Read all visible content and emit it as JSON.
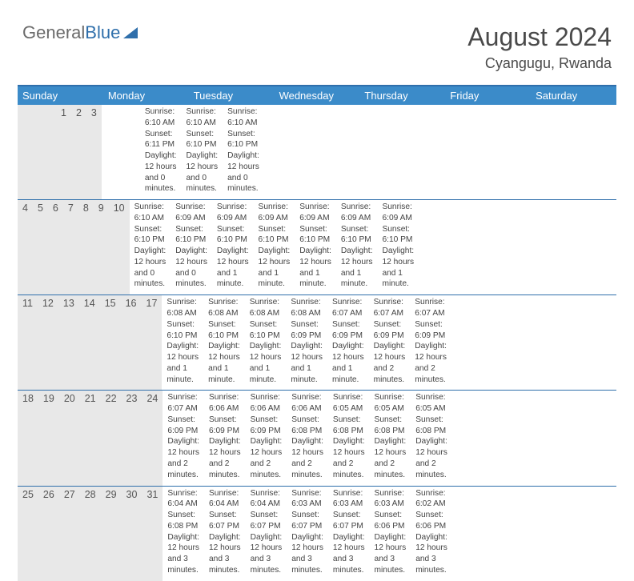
{
  "logo": {
    "part1": "General",
    "part2": "Blue"
  },
  "header": {
    "month": "August 2024",
    "location": "Cyangugu, Rwanda"
  },
  "colors": {
    "header_bg": "#3b8bc9",
    "border": "#2f6fab",
    "daynum_bg": "#e8e8e8",
    "text": "#333333"
  },
  "day_names": [
    "Sunday",
    "Monday",
    "Tuesday",
    "Wednesday",
    "Thursday",
    "Friday",
    "Saturday"
  ],
  "weeks": [
    {
      "nums": [
        "",
        "",
        "",
        "",
        "1",
        "2",
        "3"
      ],
      "cells": [
        {
          "sunrise": "",
          "sunset": "",
          "daylight_a": "",
          "daylight_b": ""
        },
        {
          "sunrise": "",
          "sunset": "",
          "daylight_a": "",
          "daylight_b": ""
        },
        {
          "sunrise": "",
          "sunset": "",
          "daylight_a": "",
          "daylight_b": ""
        },
        {
          "sunrise": "",
          "sunset": "",
          "daylight_a": "",
          "daylight_b": ""
        },
        {
          "sunrise": "Sunrise: 6:10 AM",
          "sunset": "Sunset: 6:11 PM",
          "daylight_a": "Daylight: 12 hours",
          "daylight_b": "and 0 minutes."
        },
        {
          "sunrise": "Sunrise: 6:10 AM",
          "sunset": "Sunset: 6:10 PM",
          "daylight_a": "Daylight: 12 hours",
          "daylight_b": "and 0 minutes."
        },
        {
          "sunrise": "Sunrise: 6:10 AM",
          "sunset": "Sunset: 6:10 PM",
          "daylight_a": "Daylight: 12 hours",
          "daylight_b": "and 0 minutes."
        }
      ]
    },
    {
      "nums": [
        "4",
        "5",
        "6",
        "7",
        "8",
        "9",
        "10"
      ],
      "cells": [
        {
          "sunrise": "Sunrise: 6:10 AM",
          "sunset": "Sunset: 6:10 PM",
          "daylight_a": "Daylight: 12 hours",
          "daylight_b": "and 0 minutes."
        },
        {
          "sunrise": "Sunrise: 6:09 AM",
          "sunset": "Sunset: 6:10 PM",
          "daylight_a": "Daylight: 12 hours",
          "daylight_b": "and 0 minutes."
        },
        {
          "sunrise": "Sunrise: 6:09 AM",
          "sunset": "Sunset: 6:10 PM",
          "daylight_a": "Daylight: 12 hours",
          "daylight_b": "and 1 minute."
        },
        {
          "sunrise": "Sunrise: 6:09 AM",
          "sunset": "Sunset: 6:10 PM",
          "daylight_a": "Daylight: 12 hours",
          "daylight_b": "and 1 minute."
        },
        {
          "sunrise": "Sunrise: 6:09 AM",
          "sunset": "Sunset: 6:10 PM",
          "daylight_a": "Daylight: 12 hours",
          "daylight_b": "and 1 minute."
        },
        {
          "sunrise": "Sunrise: 6:09 AM",
          "sunset": "Sunset: 6:10 PM",
          "daylight_a": "Daylight: 12 hours",
          "daylight_b": "and 1 minute."
        },
        {
          "sunrise": "Sunrise: 6:09 AM",
          "sunset": "Sunset: 6:10 PM",
          "daylight_a": "Daylight: 12 hours",
          "daylight_b": "and 1 minute."
        }
      ]
    },
    {
      "nums": [
        "11",
        "12",
        "13",
        "14",
        "15",
        "16",
        "17"
      ],
      "cells": [
        {
          "sunrise": "Sunrise: 6:08 AM",
          "sunset": "Sunset: 6:10 PM",
          "daylight_a": "Daylight: 12 hours",
          "daylight_b": "and 1 minute."
        },
        {
          "sunrise": "Sunrise: 6:08 AM",
          "sunset": "Sunset: 6:10 PM",
          "daylight_a": "Daylight: 12 hours",
          "daylight_b": "and 1 minute."
        },
        {
          "sunrise": "Sunrise: 6:08 AM",
          "sunset": "Sunset: 6:10 PM",
          "daylight_a": "Daylight: 12 hours",
          "daylight_b": "and 1 minute."
        },
        {
          "sunrise": "Sunrise: 6:08 AM",
          "sunset": "Sunset: 6:09 PM",
          "daylight_a": "Daylight: 12 hours",
          "daylight_b": "and 1 minute."
        },
        {
          "sunrise": "Sunrise: 6:07 AM",
          "sunset": "Sunset: 6:09 PM",
          "daylight_a": "Daylight: 12 hours",
          "daylight_b": "and 1 minute."
        },
        {
          "sunrise": "Sunrise: 6:07 AM",
          "sunset": "Sunset: 6:09 PM",
          "daylight_a": "Daylight: 12 hours",
          "daylight_b": "and 2 minutes."
        },
        {
          "sunrise": "Sunrise: 6:07 AM",
          "sunset": "Sunset: 6:09 PM",
          "daylight_a": "Daylight: 12 hours",
          "daylight_b": "and 2 minutes."
        }
      ]
    },
    {
      "nums": [
        "18",
        "19",
        "20",
        "21",
        "22",
        "23",
        "24"
      ],
      "cells": [
        {
          "sunrise": "Sunrise: 6:07 AM",
          "sunset": "Sunset: 6:09 PM",
          "daylight_a": "Daylight: 12 hours",
          "daylight_b": "and 2 minutes."
        },
        {
          "sunrise": "Sunrise: 6:06 AM",
          "sunset": "Sunset: 6:09 PM",
          "daylight_a": "Daylight: 12 hours",
          "daylight_b": "and 2 minutes."
        },
        {
          "sunrise": "Sunrise: 6:06 AM",
          "sunset": "Sunset: 6:09 PM",
          "daylight_a": "Daylight: 12 hours",
          "daylight_b": "and 2 minutes."
        },
        {
          "sunrise": "Sunrise: 6:06 AM",
          "sunset": "Sunset: 6:08 PM",
          "daylight_a": "Daylight: 12 hours",
          "daylight_b": "and 2 minutes."
        },
        {
          "sunrise": "Sunrise: 6:05 AM",
          "sunset": "Sunset: 6:08 PM",
          "daylight_a": "Daylight: 12 hours",
          "daylight_b": "and 2 minutes."
        },
        {
          "sunrise": "Sunrise: 6:05 AM",
          "sunset": "Sunset: 6:08 PM",
          "daylight_a": "Daylight: 12 hours",
          "daylight_b": "and 2 minutes."
        },
        {
          "sunrise": "Sunrise: 6:05 AM",
          "sunset": "Sunset: 6:08 PM",
          "daylight_a": "Daylight: 12 hours",
          "daylight_b": "and 2 minutes."
        }
      ]
    },
    {
      "nums": [
        "25",
        "26",
        "27",
        "28",
        "29",
        "30",
        "31"
      ],
      "cells": [
        {
          "sunrise": "Sunrise: 6:04 AM",
          "sunset": "Sunset: 6:08 PM",
          "daylight_a": "Daylight: 12 hours",
          "daylight_b": "and 3 minutes."
        },
        {
          "sunrise": "Sunrise: 6:04 AM",
          "sunset": "Sunset: 6:07 PM",
          "daylight_a": "Daylight: 12 hours",
          "daylight_b": "and 3 minutes."
        },
        {
          "sunrise": "Sunrise: 6:04 AM",
          "sunset": "Sunset: 6:07 PM",
          "daylight_a": "Daylight: 12 hours",
          "daylight_b": "and 3 minutes."
        },
        {
          "sunrise": "Sunrise: 6:03 AM",
          "sunset": "Sunset: 6:07 PM",
          "daylight_a": "Daylight: 12 hours",
          "daylight_b": "and 3 minutes."
        },
        {
          "sunrise": "Sunrise: 6:03 AM",
          "sunset": "Sunset: 6:07 PM",
          "daylight_a": "Daylight: 12 hours",
          "daylight_b": "and 3 minutes."
        },
        {
          "sunrise": "Sunrise: 6:03 AM",
          "sunset": "Sunset: 6:06 PM",
          "daylight_a": "Daylight: 12 hours",
          "daylight_b": "and 3 minutes."
        },
        {
          "sunrise": "Sunrise: 6:02 AM",
          "sunset": "Sunset: 6:06 PM",
          "daylight_a": "Daylight: 12 hours",
          "daylight_b": "and 3 minutes."
        }
      ]
    }
  ]
}
